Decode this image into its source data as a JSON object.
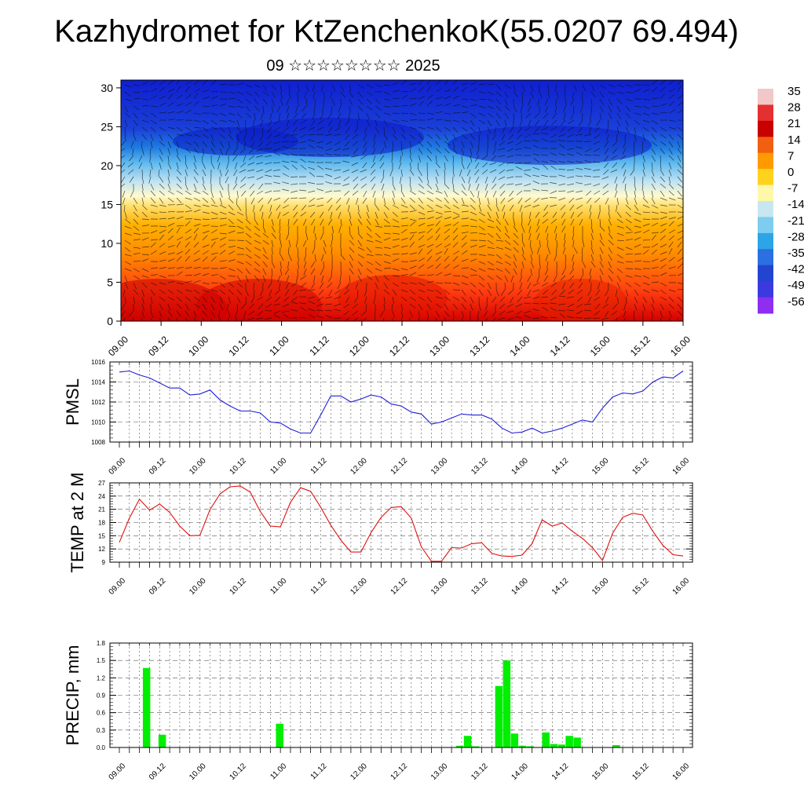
{
  "header": {
    "title": "Kazhydromet for KtZenchenkoK(55.0207 69.494)",
    "subtitle": "09 ☆☆☆☆☆☆☆☆ 2025"
  },
  "colors": {
    "pmsl_line": "#1f1fd6",
    "temp_line": "#e01010",
    "precip_bar": "#00ee00",
    "grid": "#555555"
  },
  "chart_data": [
    {
      "type": "heatmap",
      "x_ticks": [
        "09.00",
        "09.12",
        "10.00",
        "10.12",
        "11.00",
        "11.12",
        "12.00",
        "12.12",
        "13.00",
        "13.12",
        "14.00",
        "14.12",
        "15.00",
        "15.12",
        "16.00"
      ],
      "y_ticks": [
        "0",
        "5",
        "10",
        "15",
        "20",
        "25",
        "30"
      ],
      "ylim": [
        0,
        31
      ],
      "colorbar_labels": [
        "35",
        "28",
        "21",
        "14",
        "7",
        "0",
        "-7",
        "-14",
        "-21",
        "-28",
        "-35",
        "-42",
        "-49",
        "-56"
      ],
      "colorbar_colors": [
        "#f2c7c7",
        "#e43030",
        "#c80000",
        "#f06010",
        "#ff9a00",
        "#ffd21e",
        "#fff8a8",
        "#c8e6f0",
        "#7fcdee",
        "#2ba5e8",
        "#2b6fe0",
        "#2244d0",
        "#3a3ae0",
        "#8d2ef0"
      ],
      "vectors": true
    },
    {
      "type": "line",
      "ylabel": "PMSL",
      "x_ticks": [
        "09.00",
        "09.12",
        "10.00",
        "10.12",
        "11.00",
        "11.12",
        "12.00",
        "12.12",
        "13.00",
        "13.12",
        "14.00",
        "14.12",
        "15.00",
        "15.12",
        "16.00"
      ],
      "y_ticks": [
        "1016",
        "1014",
        "1012",
        "1010",
        "1008"
      ],
      "ylim": [
        1008,
        1016
      ],
      "values": [
        1015.0,
        1015.1,
        1014.7,
        1014.4,
        1013.9,
        1013.4,
        1013.4,
        1012.7,
        1012.8,
        1013.2,
        1012.2,
        1011.6,
        1011.1,
        1011.1,
        1010.9,
        1010.0,
        1009.9,
        1009.3,
        1008.9,
        1008.9,
        1010.7,
        1012.6,
        1012.6,
        1012.0,
        1012.3,
        1012.7,
        1012.5,
        1011.8,
        1011.6,
        1011.0,
        1010.8,
        1009.8,
        1010.0,
        1010.4,
        1010.8,
        1010.7,
        1010.7,
        1010.3,
        1009.4,
        1008.9,
        1009.0,
        1009.4,
        1008.9,
        1009.1,
        1009.4,
        1009.8,
        1010.2,
        1010.0,
        1011.4,
        1012.5,
        1012.9,
        1012.8,
        1013.1,
        1014.0,
        1014.5,
        1014.4,
        1015.1
      ]
    },
    {
      "type": "line",
      "ylabel": "TEMP at 2 M",
      "x_ticks": [
        "09.00",
        "09.12",
        "10.00",
        "10.12",
        "11.00",
        "11.12",
        "12.00",
        "12.12",
        "13.00",
        "13.12",
        "14.00",
        "14.12",
        "15.00",
        "15.12",
        "16.00"
      ],
      "y_ticks": [
        "27",
        "24",
        "21",
        "18",
        "15",
        "12",
        "9"
      ],
      "ylim": [
        9,
        27
      ],
      "values": [
        13.5,
        19.0,
        23.3,
        20.8,
        22.2,
        20.3,
        17.2,
        15.0,
        15.1,
        20.9,
        24.5,
        26.1,
        26.3,
        24.9,
        20.5,
        17.2,
        17.0,
        22.6,
        25.9,
        25.1,
        21.5,
        17.4,
        14.0,
        11.3,
        11.3,
        15.7,
        19.2,
        21.4,
        21.6,
        19.0,
        12.5,
        9.2,
        9.2,
        12.3,
        12.2,
        13.2,
        13.4,
        11.0,
        10.4,
        10.3,
        10.6,
        13.2,
        18.6,
        17.2,
        17.9,
        16.0,
        14.4,
        12.3,
        9.4,
        15.6,
        19.2,
        20.1,
        19.7,
        16.0,
        12.8,
        10.7,
        10.4
      ]
    },
    {
      "type": "bar",
      "ylabel": "PRECIP, mm",
      "x_ticks": [
        "09.00",
        "09.12",
        "10.00",
        "10.12",
        "11.00",
        "11.12",
        "12.00",
        "12.12",
        "13.00",
        "13.12",
        "14.00",
        "14.12",
        "15.00",
        "15.12",
        "16.00"
      ],
      "y_ticks": [
        "1.8",
        "1.5",
        "1.2",
        "0.9",
        "0.6",
        "0.3",
        "0.0"
      ],
      "ylim": [
        0,
        1.8
      ],
      "values": [
        0,
        0,
        0,
        1.37,
        0,
        0.22,
        0,
        0,
        0,
        0,
        0,
        0,
        0,
        0,
        0,
        0,
        0,
        0,
        0,
        0,
        0.41,
        0,
        0,
        0,
        0,
        0,
        0,
        0,
        0,
        0,
        0,
        0,
        0,
        0,
        0,
        0,
        0,
        0,
        0,
        0,
        0,
        0,
        0,
        0.03,
        0.2,
        0.02,
        0,
        0,
        1.06,
        1.5,
        0.24,
        0.03,
        0.02,
        0,
        0.26,
        0.06,
        0.05,
        0.2,
        0.17,
        0,
        0,
        0,
        0,
        0.04,
        0,
        0,
        0,
        0,
        0,
        0,
        0,
        0
      ]
    }
  ]
}
